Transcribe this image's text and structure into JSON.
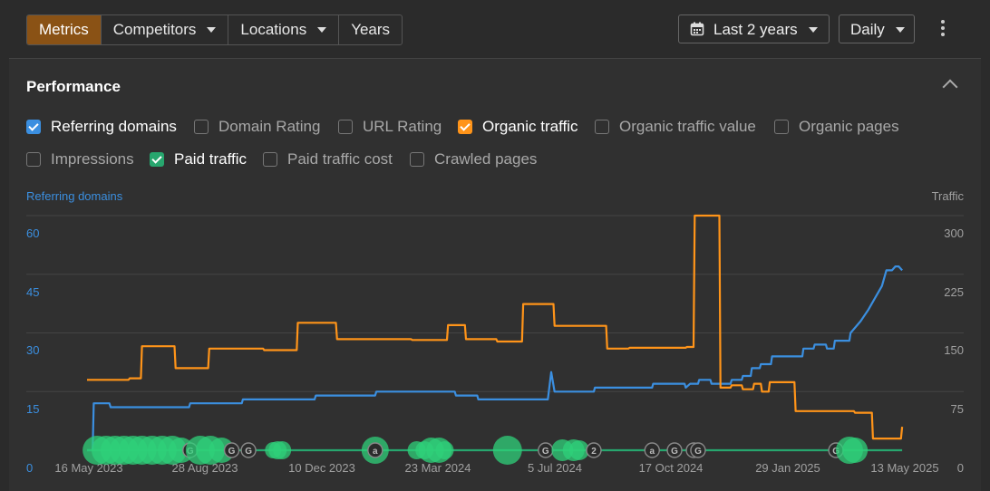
{
  "toolbar": {
    "tabs": [
      {
        "label": "Metrics",
        "active": true,
        "dropdown": false
      },
      {
        "label": "Competitors",
        "active": false,
        "dropdown": true
      },
      {
        "label": "Locations",
        "active": false,
        "dropdown": true
      },
      {
        "label": "Years",
        "active": false,
        "dropdown": false
      }
    ],
    "date_range": {
      "label": "Last 2 years",
      "icon": "calendar-icon"
    },
    "granularity": {
      "label": "Daily"
    },
    "more_icon": "kebab-menu-icon"
  },
  "performance": {
    "title": "Performance",
    "metrics": [
      {
        "label": "Referring domains",
        "checked": true,
        "color": "#3b8fe0"
      },
      {
        "label": "Domain Rating",
        "checked": false
      },
      {
        "label": "URL Rating",
        "checked": false
      },
      {
        "label": "Organic traffic",
        "checked": true,
        "color": "#ff9419"
      },
      {
        "label": "Organic traffic value",
        "checked": false
      },
      {
        "label": "Organic pages",
        "checked": false
      },
      {
        "label": "Impressions",
        "checked": false
      },
      {
        "label": "Paid traffic",
        "checked": true,
        "color": "#27a66e"
      },
      {
        "label": "Paid traffic cost",
        "checked": false
      },
      {
        "label": "Crawled pages",
        "checked": false
      }
    ]
  },
  "chart_data": {
    "type": "line",
    "left_axis_label": "Referring domains",
    "right_axis_label": "Traffic",
    "left_ticks": [
      "60",
      "45",
      "30",
      "15",
      "0"
    ],
    "right_ticks": [
      "300",
      "225",
      "150",
      "75",
      "0"
    ],
    "ylim_left": [
      0,
      60
    ],
    "ylim_right": [
      0,
      300
    ],
    "x_ticks": [
      "16 May 2023",
      "28 Aug 2023",
      "10 Dec 2023",
      "23 Mar 2024",
      "5 Jul 2024",
      "17 Oct 2024",
      "29 Jan 2025",
      "13 May 2025"
    ],
    "xlim": [
      "2023-05-16",
      "2025-05-16"
    ],
    "grid": true,
    "series": [
      {
        "name": "Referring domains",
        "axis": "left",
        "color": "#3b8fe0",
        "points": [
          [
            "2023-05-16",
            0
          ],
          [
            "2023-05-21",
            0
          ],
          [
            "2023-05-22",
            12
          ],
          [
            "2023-06-05",
            12
          ],
          [
            "2023-06-06",
            11
          ],
          [
            "2023-08-15",
            11
          ],
          [
            "2023-08-16",
            12
          ],
          [
            "2023-10-01",
            12
          ],
          [
            "2023-10-02",
            13
          ],
          [
            "2023-12-05",
            13
          ],
          [
            "2023-12-06",
            14
          ],
          [
            "2024-01-28",
            14
          ],
          [
            "2024-01-29",
            15
          ],
          [
            "2024-03-20",
            15
          ],
          [
            "2024-04-08",
            15
          ],
          [
            "2024-04-09",
            14
          ],
          [
            "2024-04-28",
            14
          ],
          [
            "2024-04-29",
            13
          ],
          [
            "2024-06-30",
            13
          ],
          [
            "2024-07-03",
            20
          ],
          [
            "2024-07-06",
            15
          ],
          [
            "2024-08-10",
            15
          ],
          [
            "2024-08-11",
            16
          ],
          [
            "2024-10-01",
            16
          ],
          [
            "2024-10-02",
            17
          ],
          [
            "2024-10-30",
            17
          ],
          [
            "2024-10-31",
            16
          ],
          [
            "2024-11-04",
            17
          ],
          [
            "2024-11-11",
            17
          ],
          [
            "2024-11-12",
            18
          ],
          [
            "2024-11-22",
            18
          ],
          [
            "2024-11-23",
            17
          ],
          [
            "2024-12-10",
            17
          ],
          [
            "2024-12-11",
            18
          ],
          [
            "2024-12-20",
            18
          ],
          [
            "2024-12-21",
            19
          ],
          [
            "2024-12-28",
            19
          ],
          [
            "2024-12-29",
            21
          ],
          [
            "2025-01-05",
            21
          ],
          [
            "2025-01-06",
            22
          ],
          [
            "2025-01-15",
            22
          ],
          [
            "2025-01-16",
            24
          ],
          [
            "2025-02-12",
            24
          ],
          [
            "2025-02-13",
            26
          ],
          [
            "2025-02-22",
            26
          ],
          [
            "2025-02-23",
            27
          ],
          [
            "2025-03-05",
            27
          ],
          [
            "2025-03-06",
            26
          ],
          [
            "2025-03-12",
            26
          ],
          [
            "2025-03-13",
            28
          ],
          [
            "2025-03-26",
            28
          ],
          [
            "2025-03-27",
            30
          ],
          [
            "2025-04-05",
            33
          ],
          [
            "2025-04-12",
            36
          ],
          [
            "2025-04-18",
            39
          ],
          [
            "2025-04-24",
            42
          ],
          [
            "2025-04-28",
            46
          ],
          [
            "2025-05-03",
            46
          ],
          [
            "2025-05-06",
            47
          ],
          [
            "2025-05-09",
            47
          ],
          [
            "2025-05-12",
            46
          ]
        ]
      },
      {
        "name": "Organic traffic",
        "axis": "right",
        "color": "#ff9419",
        "points": [
          [
            "2023-05-16",
            90
          ],
          [
            "2023-06-22",
            90
          ],
          [
            "2023-06-23",
            92
          ],
          [
            "2023-07-03",
            92
          ],
          [
            "2023-07-04",
            133
          ],
          [
            "2023-08-02",
            133
          ],
          [
            "2023-08-03",
            105
          ],
          [
            "2023-09-01",
            105
          ],
          [
            "2023-09-02",
            130
          ],
          [
            "2023-10-20",
            130
          ],
          [
            "2023-10-21",
            128
          ],
          [
            "2023-11-19",
            128
          ],
          [
            "2023-11-20",
            163
          ],
          [
            "2023-12-24",
            163
          ],
          [
            "2023-12-25",
            142
          ],
          [
            "2024-02-29",
            142
          ],
          [
            "2024-03-01",
            141
          ],
          [
            "2024-04-01",
            141
          ],
          [
            "2024-04-02",
            160
          ],
          [
            "2024-04-17",
            160
          ],
          [
            "2024-04-18",
            142
          ],
          [
            "2024-05-15",
            142
          ],
          [
            "2024-05-16",
            139
          ],
          [
            "2024-06-07",
            139
          ],
          [
            "2024-06-08",
            187
          ],
          [
            "2024-07-05",
            187
          ],
          [
            "2024-07-06",
            159
          ],
          [
            "2024-08-21",
            159
          ],
          [
            "2024-08-22",
            130
          ],
          [
            "2024-09-10",
            130
          ],
          [
            "2024-09-11",
            131
          ],
          [
            "2024-10-31",
            131
          ],
          [
            "2024-11-01",
            132
          ],
          [
            "2024-11-07",
            132
          ],
          [
            "2024-11-08",
            300
          ],
          [
            "2024-11-30",
            300
          ],
          [
            "2024-12-01",
            80
          ],
          [
            "2024-12-10",
            80
          ],
          [
            "2024-12-11",
            83
          ],
          [
            "2024-12-20",
            83
          ],
          [
            "2024-12-21",
            78
          ],
          [
            "2024-12-30",
            78
          ],
          [
            "2024-12-31",
            85
          ],
          [
            "2025-01-06",
            85
          ],
          [
            "2025-01-07",
            75
          ],
          [
            "2025-01-13",
            75
          ],
          [
            "2025-01-14",
            87
          ],
          [
            "2025-02-05",
            87
          ],
          [
            "2025-02-06",
            50
          ],
          [
            "2025-03-30",
            50
          ],
          [
            "2025-03-31",
            48
          ],
          [
            "2025-04-15",
            48
          ],
          [
            "2025-04-16",
            15
          ],
          [
            "2025-05-11",
            15
          ],
          [
            "2025-05-12",
            30
          ]
        ]
      },
      {
        "name": "Paid traffic",
        "axis": "right",
        "color": "#27a66e",
        "points": [
          [
            "2023-05-16",
            0
          ],
          [
            "2025-05-12",
            0
          ]
        ]
      }
    ],
    "annotations": [
      {
        "date": "2023-05-25",
        "kind": "bubble",
        "size": 16
      },
      {
        "date": "2023-06-02",
        "kind": "bubble",
        "size": 16
      },
      {
        "date": "2023-06-10",
        "kind": "bubble",
        "size": 16
      },
      {
        "date": "2023-06-18",
        "kind": "bubble",
        "size": 16
      },
      {
        "date": "2023-06-26",
        "kind": "bubble",
        "size": 16
      },
      {
        "date": "2023-07-04",
        "kind": "bubble",
        "size": 16
      },
      {
        "date": "2023-07-13",
        "kind": "bubble",
        "size": 16
      },
      {
        "date": "2023-07-22",
        "kind": "bubble",
        "size": 16
      },
      {
        "date": "2023-07-31",
        "kind": "bubble",
        "size": 16
      },
      {
        "date": "2023-08-08",
        "kind": "bubble",
        "size": 14
      },
      {
        "date": "2023-08-16",
        "kind": "letter",
        "glyph": "G"
      },
      {
        "date": "2023-08-25",
        "kind": "bubble",
        "size": 16
      },
      {
        "date": "2023-09-03",
        "kind": "bubble",
        "size": 16
      },
      {
        "date": "2023-09-13",
        "kind": "bubble",
        "size": 14
      },
      {
        "date": "2023-09-22",
        "kind": "letter",
        "glyph": "G"
      },
      {
        "date": "2023-10-07",
        "kind": "letter",
        "glyph": "G"
      },
      {
        "date": "2023-10-29",
        "kind": "bubble",
        "size": 9
      },
      {
        "date": "2023-11-02",
        "kind": "bubble",
        "size": 10
      },
      {
        "date": "2023-11-06",
        "kind": "bubble",
        "size": 10
      },
      {
        "date": "2024-01-28",
        "kind": "bubble",
        "size": 15
      },
      {
        "date": "2024-01-28",
        "kind": "letter",
        "glyph": "a"
      },
      {
        "date": "2024-03-05",
        "kind": "bubble",
        "size": 10
      },
      {
        "date": "2024-03-12",
        "kind": "bubble",
        "size": 10
      },
      {
        "date": "2024-03-18",
        "kind": "bubble",
        "size": 14
      },
      {
        "date": "2024-03-25",
        "kind": "bubble",
        "size": 14
      },
      {
        "date": "2024-03-30",
        "kind": "bubble",
        "size": 10
      },
      {
        "date": "2024-05-25",
        "kind": "bubble",
        "size": 16
      },
      {
        "date": "2024-06-28",
        "kind": "letter",
        "glyph": "G"
      },
      {
        "date": "2024-07-13",
        "kind": "bubble",
        "size": 12
      },
      {
        "date": "2024-07-23",
        "kind": "bubble",
        "size": 12
      },
      {
        "date": "2024-07-28",
        "kind": "bubble",
        "size": 11
      },
      {
        "date": "2024-08-10",
        "kind": "letter",
        "glyph": "2"
      },
      {
        "date": "2024-10-01",
        "kind": "letter",
        "glyph": "a"
      },
      {
        "date": "2024-10-21",
        "kind": "letter",
        "glyph": "G"
      },
      {
        "date": "2024-11-07",
        "kind": "letter",
        "glyph": "G"
      },
      {
        "date": "2024-11-11",
        "kind": "letter",
        "glyph": "G"
      },
      {
        "date": "2025-03-14",
        "kind": "letter",
        "glyph": "G"
      },
      {
        "date": "2025-03-26",
        "kind": "bubble",
        "size": 15
      },
      {
        "date": "2025-03-31",
        "kind": "bubble",
        "size": 14
      }
    ]
  }
}
